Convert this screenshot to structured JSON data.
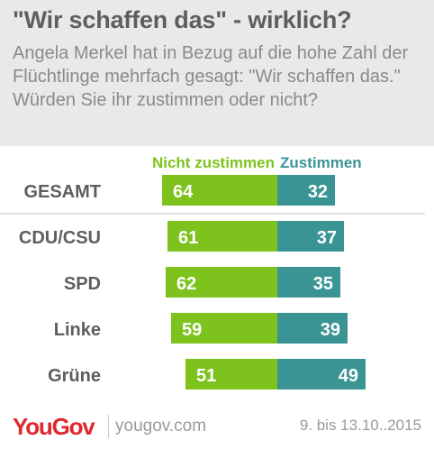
{
  "header": {
    "title": "\"Wir schaffen das\" - wirklich?",
    "subtitle": "Angela Merkel hat in Bezug auf die hohe Zahl der Flüchtlinge mehrfach gesagt: \"Wir schaffen das.\" Würden Sie ihr zustimmen oder nicht?"
  },
  "chart_data": {
    "type": "bar",
    "orientation": "horizontal-diverging",
    "categories": [
      "GESAMT",
      "CDU/CSU",
      "SPD",
      "Linke",
      "Grüne"
    ],
    "series": [
      {
        "name": "Nicht zustimmen",
        "values": [
          64,
          61,
          62,
          59,
          51
        ],
        "color": "#7ec21d"
      },
      {
        "name": "Zustimmen",
        "values": [
          32,
          37,
          35,
          39,
          49
        ],
        "color": "#3b9494"
      }
    ]
  },
  "footer": {
    "logo": "YouGov",
    "site": "yougov.com",
    "date": "9. bis 13.10..2015"
  },
  "colors": {
    "header_bg": "#e9e9e9",
    "title": "#5e5e5e",
    "subtitle": "#8a8a8a",
    "category_label": "#5e5e5e",
    "brand": "#e0282e"
  }
}
